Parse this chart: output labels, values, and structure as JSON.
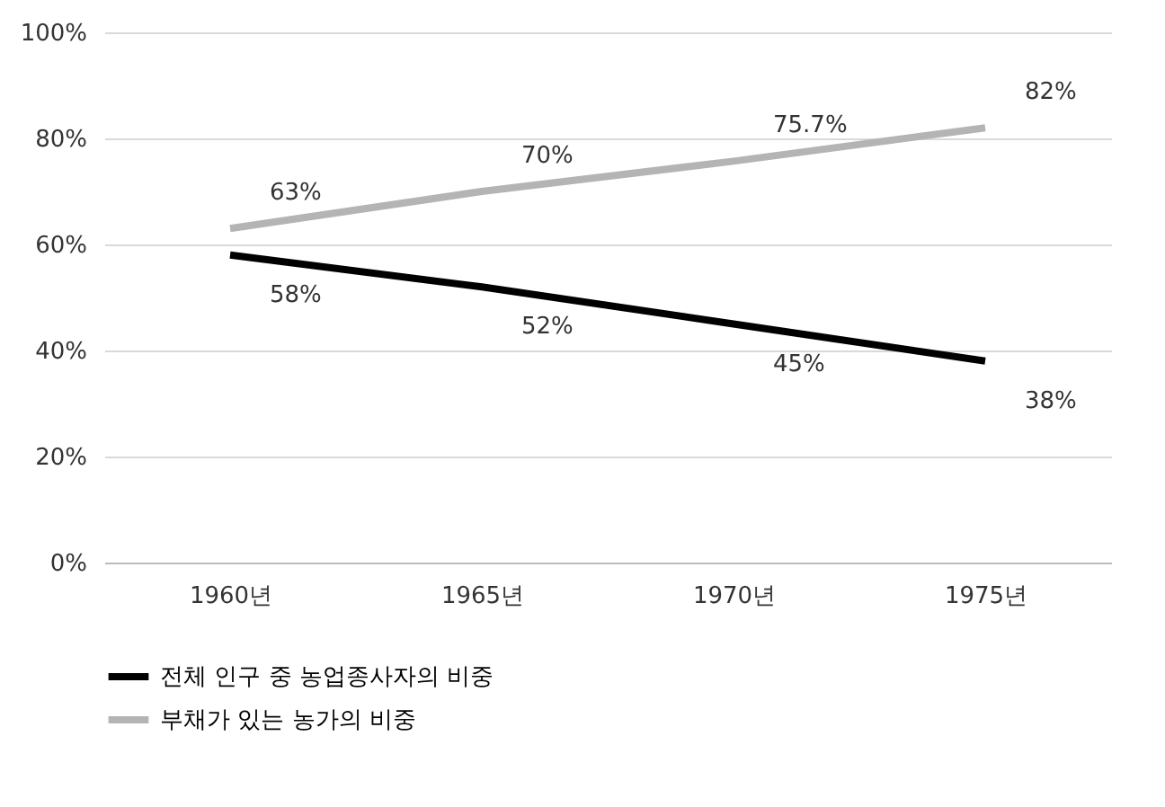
{
  "chart_data": {
    "type": "line",
    "categories": [
      "1960년",
      "1965년",
      "1970년",
      "1975년"
    ],
    "series": [
      {
        "name": "전체 인구 중 농업종사자의 비중",
        "color": "#000000",
        "values": [
          58,
          52,
          45,
          38
        ],
        "value_labels": [
          "58%",
          "52%",
          "45%",
          "38%"
        ]
      },
      {
        "name": "부채가 있는 농가의 비중",
        "color": "#b4b4b4",
        "values": [
          63,
          70,
          75.7,
          82
        ],
        "value_labels": [
          "63%",
          "70%",
          "75.7%",
          "82%"
        ]
      }
    ],
    "ylim": [
      0,
      100
    ],
    "yticks": [
      {
        "value": 0,
        "label": "0%"
      },
      {
        "value": 20,
        "label": "20%"
      },
      {
        "value": 40,
        "label": "40%"
      },
      {
        "value": 60,
        "label": "60%"
      },
      {
        "value": 80,
        "label": "80%"
      },
      {
        "value": 100,
        "label": "100%"
      }
    ],
    "grid": "y",
    "legend": "bottom",
    "marker": "none",
    "line_style": "solid"
  }
}
